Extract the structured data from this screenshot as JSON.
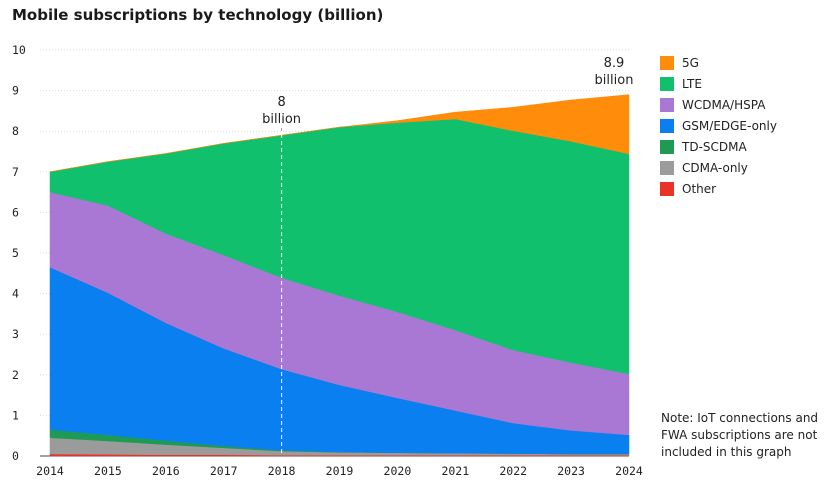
{
  "chart_data": {
    "type": "area",
    "stacked": true,
    "title": "Mobile subscriptions by technology (billion)",
    "x": [
      2014,
      2015,
      2016,
      2017,
      2018,
      2019,
      2020,
      2021,
      2022,
      2023,
      2024
    ],
    "ylim": [
      0,
      10
    ],
    "yticks": [
      0,
      1,
      2,
      3,
      4,
      5,
      6,
      7,
      8,
      9,
      10
    ],
    "grid": true,
    "legend_position": "right",
    "series": [
      {
        "name": "Other",
        "color": "#e8322a",
        "values": [
          0.05,
          0.04,
          0.03,
          0.03,
          0.02,
          0.02,
          0.02,
          0.02,
          0.02,
          0.02,
          0.02
        ]
      },
      {
        "name": "CDMA-only",
        "color": "#9b9b9b",
        "values": [
          0.4,
          0.33,
          0.25,
          0.17,
          0.1,
          0.07,
          0.06,
          0.05,
          0.04,
          0.03,
          0.03
        ]
      },
      {
        "name": "TD-SCDMA",
        "color": "#1f9a55",
        "values": [
          0.2,
          0.15,
          0.1,
          0.05,
          0.02,
          0.01,
          0.0,
          0.0,
          0.0,
          0.0,
          0.0
        ]
      },
      {
        "name": "GSM/EDGE-only",
        "color": "#0a7ff0",
        "values": [
          4.0,
          3.5,
          2.9,
          2.4,
          2.0,
          1.65,
          1.35,
          1.05,
          0.75,
          0.58,
          0.47
        ]
      },
      {
        "name": "WCDMA/HSPA",
        "color": "#a978d4",
        "values": [
          1.85,
          2.15,
          2.2,
          2.3,
          2.25,
          2.2,
          2.12,
          1.98,
          1.8,
          1.67,
          1.5
        ]
      },
      {
        "name": "LTE",
        "color": "#11c06c",
        "values": [
          0.5,
          1.08,
          1.97,
          2.75,
          3.51,
          4.15,
          4.66,
          5.2,
          5.4,
          5.45,
          5.42
        ]
      },
      {
        "name": "5G",
        "color": "#ff8c0a",
        "values": [
          0.0,
          0.0,
          0.0,
          0.0,
          0.0,
          0.0,
          0.05,
          0.17,
          0.58,
          1.02,
          1.46
        ]
      }
    ],
    "legend_order": [
      "5G",
      "LTE",
      "WCDMA/HSPA",
      "GSM/EDGE-only",
      "TD-SCDMA",
      "CDMA-only",
      "Other"
    ],
    "annotations": [
      {
        "x": 2018,
        "y": 7.93,
        "line1": "8",
        "line2": "billion"
      },
      {
        "x": 2024,
        "y": 8.9,
        "line1": "8.9",
        "line2": "billion"
      }
    ],
    "note": "Note: IoT connections and FWA subscriptions are not included in this graph"
  }
}
